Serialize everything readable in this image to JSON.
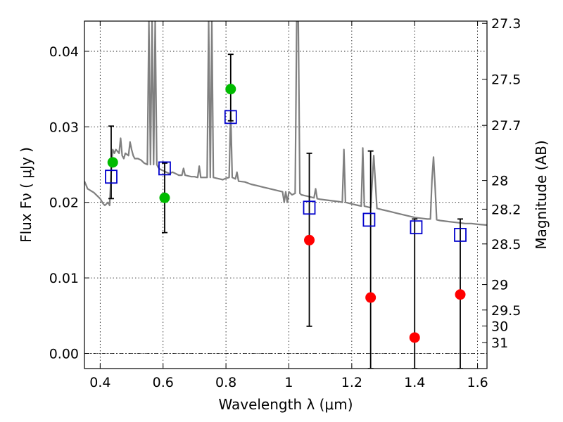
{
  "chart_data": {
    "type": "scatter",
    "xlabel": "Wavelength  λ (μm)",
    "ylabel": "Flux  Fν  ( μJy )",
    "ylabel_right": "Magnitude (AB)",
    "xlim": [
      0.35,
      1.63
    ],
    "ylim": [
      -0.002,
      0.044
    ],
    "grid": true,
    "x_ticks": [
      0.4,
      0.6,
      0.8,
      1.0,
      1.2,
      1.4,
      1.6
    ],
    "x_tick_labels": [
      "0.4",
      "0.6",
      "0.8",
      "1",
      "1.2",
      "1.4",
      "1.6"
    ],
    "y_ticks": [
      0.0,
      0.01,
      0.02,
      0.03,
      0.04
    ],
    "y_tick_labels": [
      "0.00",
      "0.01",
      "0.02",
      "0.03",
      "0.04"
    ],
    "right_ticks": [
      {
        "label": "27.3",
        "flux": 0.0437
      },
      {
        "label": "27.5",
        "flux": 0.0363
      },
      {
        "label": "27.7",
        "flux": 0.0302
      },
      {
        "label": "28",
        "flux": 0.0229
      },
      {
        "label": "28.2",
        "flux": 0.0191
      },
      {
        "label": "28.5",
        "flux": 0.0145
      },
      {
        "label": "29",
        "flux": 0.00912
      },
      {
        "label": "29.5",
        "flux": 0.00575
      },
      {
        "label": "30",
        "flux": 0.00363
      },
      {
        "label": "31",
        "flux": 0.00145
      }
    ],
    "series": [
      {
        "kind": "model_sed_line",
        "color": "#808080",
        "x": [
          0.35,
          0.36,
          0.38,
          0.4,
          0.41,
          0.415,
          0.42,
          0.425,
          0.43,
          0.435,
          0.44,
          0.445,
          0.45,
          0.46,
          0.465,
          0.47,
          0.475,
          0.48,
          0.49,
          0.495,
          0.5,
          0.505,
          0.51,
          0.52,
          0.53,
          0.54,
          0.55,
          0.555,
          0.56,
          0.565,
          0.57,
          0.575,
          0.58,
          0.585,
          0.59,
          0.6,
          0.61,
          0.62,
          0.63,
          0.64,
          0.65,
          0.66,
          0.665,
          0.67,
          0.68,
          0.69,
          0.7,
          0.71,
          0.715,
          0.72,
          0.73,
          0.74,
          0.745,
          0.75,
          0.755,
          0.76,
          0.77,
          0.78,
          0.79,
          0.8,
          0.81,
          0.815,
          0.82,
          0.83,
          0.835,
          0.84,
          0.86,
          0.88,
          0.9,
          0.92,
          0.94,
          0.96,
          0.98,
          0.985,
          0.99,
          0.995,
          1.0,
          1.01,
          1.02,
          1.025,
          1.03,
          1.035,
          1.04,
          1.05,
          1.06,
          1.07,
          1.08,
          1.085,
          1.09,
          1.1,
          1.12,
          1.14,
          1.16,
          1.17,
          1.175,
          1.18,
          1.19,
          1.2,
          1.21,
          1.22,
          1.23,
          1.235,
          1.24,
          1.25,
          1.26,
          1.27,
          1.28,
          1.3,
          1.32,
          1.34,
          1.36,
          1.38,
          1.4,
          1.42,
          1.44,
          1.45,
          1.455,
          1.46,
          1.465,
          1.47,
          1.48,
          1.5,
          1.52,
          1.54,
          1.56,
          1.58,
          1.6,
          1.63
        ],
        "y": [
          0.0228,
          0.0218,
          0.0213,
          0.0205,
          0.0198,
          0.0196,
          0.0198,
          0.02,
          0.0196,
          0.024,
          0.027,
          0.0265,
          0.027,
          0.0265,
          0.0285,
          0.0262,
          0.0258,
          0.0265,
          0.0262,
          0.028,
          0.027,
          0.0262,
          0.0258,
          0.0258,
          0.0256,
          0.0252,
          0.025,
          0.044,
          0.025,
          0.044,
          0.025,
          0.044,
          0.025,
          0.0246,
          0.0244,
          0.0242,
          0.024,
          0.0238,
          0.024,
          0.0238,
          0.0236,
          0.0236,
          0.0245,
          0.0236,
          0.0235,
          0.0234,
          0.0234,
          0.0233,
          0.0248,
          0.0233,
          0.0233,
          0.0233,
          0.044,
          0.0233,
          0.044,
          0.0233,
          0.0232,
          0.0231,
          0.023,
          0.0232,
          0.0233,
          0.032,
          0.0233,
          0.0231,
          0.024,
          0.0228,
          0.0227,
          0.0224,
          0.0222,
          0.022,
          0.0218,
          0.0216,
          0.0214,
          0.02,
          0.0214,
          0.02,
          0.0214,
          0.021,
          0.0212,
          0.044,
          0.044,
          0.0212,
          0.021,
          0.0209,
          0.0208,
          0.0207,
          0.0206,
          0.0218,
          0.0205,
          0.0204,
          0.0203,
          0.0202,
          0.0201,
          0.02,
          0.027,
          0.02,
          0.0199,
          0.0198,
          0.0197,
          0.0196,
          0.0195,
          0.0272,
          0.0195,
          0.0194,
          0.0193,
          0.0262,
          0.0192,
          0.019,
          0.0188,
          0.0186,
          0.0184,
          0.0182,
          0.018,
          0.0179,
          0.0178,
          0.0178,
          0.023,
          0.026,
          0.022,
          0.0177,
          0.0176,
          0.0175,
          0.0174,
          0.0173,
          0.0172,
          0.0172,
          0.0171,
          0.017
        ]
      },
      {
        "kind": "error_bars",
        "color": "#000000",
        "points": [
          {
            "x": 0.435,
            "low": 0.0205,
            "high": 0.0301
          },
          {
            "x": 0.605,
            "low": 0.016,
            "high": 0.0252
          },
          {
            "x": 0.815,
            "low": 0.0308,
            "high": 0.0396
          },
          {
            "x": 1.065,
            "low": 0.0036,
            "high": 0.0265
          },
          {
            "x": 1.26,
            "low": -0.002,
            "high": 0.0268
          },
          {
            "x": 1.4,
            "low": -0.002,
            "high": 0.0178
          },
          {
            "x": 1.545,
            "low": -0.002,
            "high": 0.0178
          }
        ]
      },
      {
        "kind": "open_squares",
        "color": "#0000cc",
        "x": [
          0.435,
          0.605,
          0.815,
          1.065,
          1.255,
          1.405,
          1.545
        ],
        "y": [
          0.0234,
          0.0245,
          0.0313,
          0.0193,
          0.0177,
          0.0167,
          0.0157
        ]
      },
      {
        "kind": "filled_circles_green",
        "color": "#00bb00",
        "x": [
          0.44,
          0.605,
          0.815
        ],
        "y": [
          0.0253,
          0.0206,
          0.035
        ]
      },
      {
        "kind": "filled_circles_red",
        "color": "#ff0000",
        "x": [
          1.065,
          1.26,
          1.4,
          1.545
        ],
        "y": [
          0.015,
          0.0074,
          0.0021,
          0.0078
        ]
      }
    ]
  }
}
